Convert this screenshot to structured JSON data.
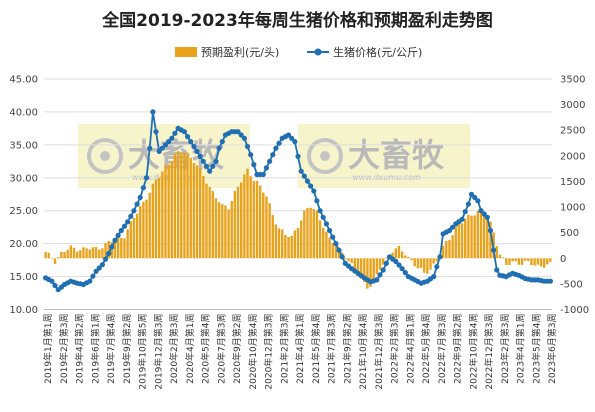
{
  "chart_data": {
    "type": "bar+line",
    "title": "全国2019-2023年每周生猪价格和预期盈利走势图",
    "legend": {
      "placement": "top-center"
    },
    "grid": {
      "horizontal": true,
      "vertical": false
    },
    "left_axis": {
      "min": 10,
      "max": 45,
      "ticks": [
        10,
        15,
        20,
        25,
        30,
        35,
        40,
        45
      ],
      "tick_labels": [
        "10.00",
        "15.00",
        "20.00",
        "25.00",
        "30.00",
        "35.00",
        "40.00",
        "45.00"
      ]
    },
    "right_axis": {
      "min": -1000,
      "max": 3500,
      "ticks": [
        -1000,
        -500,
        0,
        500,
        1000,
        1500,
        2000,
        2500,
        3000,
        3500
      ],
      "tick_labels": [
        "-1000",
        "-500",
        "0",
        "500",
        "1000",
        "1500",
        "2000",
        "2500",
        "3000",
        "3500"
      ]
    },
    "x_tick_labels": [
      "2019年1月第1周",
      "2019年2月第3周",
      "2019年4月第2周",
      "2019年6月第1周",
      "2019年7月第4周",
      "2019年9月第2周",
      "2019年10月第5周",
      "2019年12月第3周",
      "2020年2月第3周",
      "2020年4月第1周",
      "2020年5月第4周",
      "2020年7月第3周",
      "2020年9月第2周",
      "2020年10月第4周",
      "2020年12月第3周",
      "2021年2月第3周",
      "2021年4月第1周",
      "2021年5月第4周",
      "2021年7月第3周",
      "2021年9月第2周",
      "2021年10月第4周",
      "2021年12月第3周",
      "2022年2月第3周",
      "2022年4月第1周",
      "2022年5月第4周",
      "2022年7月第3周",
      "2022年9月第2周",
      "2022年10月第4周",
      "2022年12月第3周",
      "2023年2月第3周",
      "2023年4月第1周",
      "2023年5月第4周",
      "2023年6月第3周"
    ],
    "series": [
      {
        "name": "预期盈利(元/头)",
        "axis": "right",
        "kind": "bar",
        "color": "#E8A21C",
        "keypoints": [
          [
            0,
            100
          ],
          [
            2,
            0
          ],
          [
            3,
            -50
          ],
          [
            5,
            100
          ],
          [
            8,
            200
          ],
          [
            12,
            180
          ],
          [
            16,
            190
          ],
          [
            20,
            300
          ],
          [
            25,
            450
          ],
          [
            30,
            1000
          ],
          [
            34,
            1400
          ],
          [
            38,
            1800
          ],
          [
            41,
            2000
          ],
          [
            44,
            2100
          ],
          [
            47,
            1900
          ],
          [
            50,
            1600
          ],
          [
            53,
            1300
          ],
          [
            56,
            1000
          ],
          [
            58,
            1000
          ],
          [
            60,
            1300
          ],
          [
            62,
            1500
          ],
          [
            64,
            1700
          ],
          [
            67,
            1500
          ],
          [
            70,
            1200
          ],
          [
            72,
            850
          ],
          [
            74,
            600
          ],
          [
            76,
            450
          ],
          [
            78,
            400
          ],
          [
            80,
            650
          ],
          [
            82,
            900
          ],
          [
            84,
            1000
          ],
          [
            86,
            900
          ],
          [
            88,
            650
          ],
          [
            90,
            350
          ],
          [
            92,
            250
          ],
          [
            94,
            120
          ],
          [
            96,
            -50
          ],
          [
            98,
            -250
          ],
          [
            100,
            -400
          ],
          [
            102,
            -550
          ],
          [
            104,
            -500
          ],
          [
            106,
            -200
          ],
          [
            108,
            0
          ],
          [
            110,
            150
          ],
          [
            112,
            180
          ],
          [
            114,
            100
          ],
          [
            116,
            -50
          ],
          [
            118,
            -200
          ],
          [
            120,
            -300
          ],
          [
            122,
            -200
          ],
          [
            124,
            -50
          ],
          [
            126,
            200
          ],
          [
            128,
            400
          ],
          [
            130,
            600
          ],
          [
            132,
            700
          ],
          [
            134,
            800
          ],
          [
            136,
            900
          ],
          [
            138,
            950
          ],
          [
            140,
            850
          ],
          [
            142,
            500
          ],
          [
            144,
            100
          ],
          [
            146,
            -150
          ],
          [
            148,
            -80
          ],
          [
            152,
            -80
          ],
          [
            154,
            -120
          ],
          [
            156,
            -150
          ],
          [
            158,
            -130
          ],
          [
            160,
            -130
          ]
        ]
      },
      {
        "name": "生猪价格(元/公斤)",
        "axis": "left",
        "kind": "line",
        "color": "#1F6FB2",
        "keypoints": [
          [
            0,
            14.8
          ],
          [
            2,
            14.3
          ],
          [
            4,
            13.0
          ],
          [
            6,
            13.8
          ],
          [
            8,
            14.3
          ],
          [
            10,
            14.0
          ],
          [
            12,
            13.8
          ],
          [
            14,
            14.3
          ],
          [
            16,
            15.8
          ],
          [
            18,
            16.8
          ],
          [
            20,
            18.5
          ],
          [
            22,
            20.5
          ],
          [
            24,
            22.0
          ],
          [
            26,
            23.3
          ],
          [
            28,
            25.0
          ],
          [
            30,
            27.0
          ],
          [
            32,
            30.0
          ],
          [
            33,
            34.5
          ],
          [
            34,
            40.0
          ],
          [
            35,
            37.0
          ],
          [
            36,
            34.0
          ],
          [
            38,
            35.0
          ],
          [
            40,
            36.0
          ],
          [
            42,
            37.5
          ],
          [
            44,
            37.0
          ],
          [
            46,
            35.5
          ],
          [
            48,
            34.0
          ],
          [
            50,
            32.5
          ],
          [
            52,
            31.0
          ],
          [
            54,
            32.5
          ],
          [
            55,
            34.5
          ],
          [
            57,
            36.5
          ],
          [
            59,
            37.0
          ],
          [
            61,
            37.0
          ],
          [
            63,
            36.0
          ],
          [
            65,
            33.5
          ],
          [
            67,
            30.5
          ],
          [
            69,
            30.5
          ],
          [
            71,
            32.5
          ],
          [
            73,
            34.5
          ],
          [
            75,
            36.0
          ],
          [
            77,
            36.5
          ],
          [
            79,
            35.5
          ],
          [
            81,
            31.0
          ],
          [
            83,
            29.5
          ],
          [
            85,
            28.0
          ],
          [
            87,
            25.0
          ],
          [
            89,
            23.0
          ],
          [
            91,
            21.0
          ],
          [
            93,
            19.0
          ],
          [
            95,
            17.0
          ],
          [
            97,
            16.2
          ],
          [
            99,
            15.5
          ],
          [
            101,
            14.8
          ],
          [
            103,
            14.2
          ],
          [
            105,
            14.5
          ],
          [
            107,
            16.0
          ],
          [
            109,
            18.0
          ],
          [
            111,
            17.3
          ],
          [
            113,
            16.2
          ],
          [
            115,
            15.0
          ],
          [
            117,
            14.5
          ],
          [
            119,
            14.0
          ],
          [
            121,
            14.3
          ],
          [
            123,
            15.0
          ],
          [
            125,
            18.0
          ],
          [
            126,
            21.5
          ],
          [
            128,
            22.0
          ],
          [
            130,
            23.0
          ],
          [
            132,
            23.7
          ],
          [
            134,
            26.0
          ],
          [
            135,
            27.5
          ],
          [
            137,
            26.5
          ],
          [
            138,
            25.0
          ],
          [
            140,
            24.0
          ],
          [
            141,
            22.0
          ],
          [
            142,
            19.0
          ],
          [
            143,
            16.0
          ],
          [
            144,
            15.2
          ],
          [
            146,
            15.0
          ],
          [
            148,
            15.5
          ],
          [
            150,
            15.2
          ],
          [
            152,
            14.7
          ],
          [
            154,
            14.5
          ],
          [
            156,
            14.5
          ],
          [
            158,
            14.3
          ],
          [
            160,
            14.3
          ]
        ]
      }
    ]
  },
  "watermark": {
    "brand": "大畜牧",
    "site": "www.dxumu.com"
  },
  "colors": {
    "bar": "#E8A21C",
    "line": "#1F6FB2",
    "line_fill": "#1F6FB2",
    "grid": "#DDDDDD",
    "watermark_bg": "#F6F2C2"
  }
}
